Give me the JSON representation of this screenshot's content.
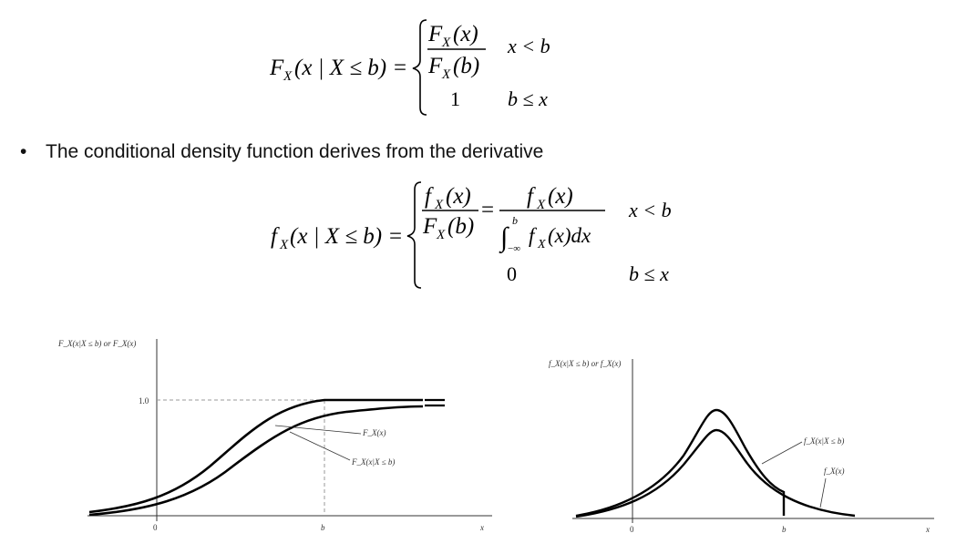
{
  "bullet": {
    "marker": "•",
    "text": "The conditional density function derives from the derivative"
  },
  "eq1": {
    "lhs_F": "F",
    "lhs_sub": "X",
    "lhs_arg": "(x | X ≤ b) =",
    "num_F": "F",
    "num_sub": "X",
    "num_arg": "(x)",
    "den_F": "F",
    "den_sub": "X",
    "den_arg": "(b)",
    "cond1": "x < b",
    "val2": "1",
    "cond2": "b ≤ x"
  },
  "eq2": {
    "lhs_f": "f",
    "lhs_sub": "X",
    "lhs_arg": "(x | X ≤ b) =",
    "num_f": "f",
    "num_sub": "X",
    "num_arg": "(x)",
    "den_F": "F",
    "den_sub": "X",
    "den_arg": "(b)",
    "eq": "=",
    "num2_f": "f",
    "num2_sub": "X",
    "num2_arg": "(x)",
    "int_upper": "b",
    "int_lower": "−∞",
    "int_f": "f",
    "int_sub": "X",
    "int_arg": "(x)dx",
    "cond1": "x < b",
    "val2": "0",
    "cond2": "b ≤ x"
  },
  "plot_left": {
    "ylabel": "F_X(x|X ≤ b) or F_X(x)",
    "y_tick": "1.0",
    "x_tick_0": "0",
    "x_tick_b": "b",
    "x_label": "x",
    "curve_label_1": "F_X(x)",
    "curve_label_2": "F_X(x|X ≤ b)"
  },
  "plot_right": {
    "ylabel": "f_X(x|X ≤ b) or f_X(x)",
    "x_tick_0": "0",
    "x_tick_b": "b",
    "x_label": "x",
    "curve_label_1": "f_X(x|X ≤ b)",
    "curve_label_2": "f_X(x)"
  },
  "colors": {
    "ink": "#000000",
    "axis": "#333333",
    "dashed": "#999999"
  }
}
